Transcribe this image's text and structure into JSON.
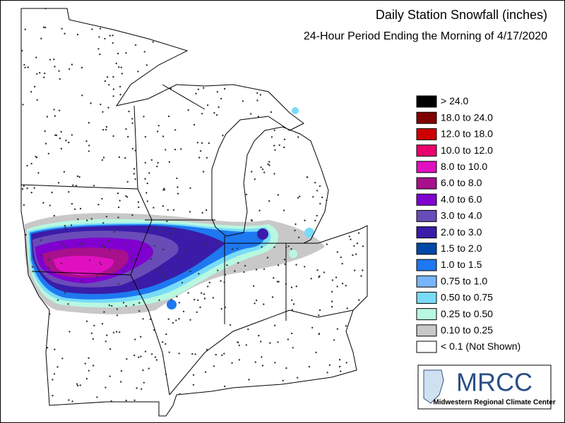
{
  "header": {
    "title": "Daily Station Snowfall (inches)",
    "subtitle": "24-Hour Period Ending the Morning of 4/17/2020"
  },
  "legend": {
    "items": [
      {
        "label": "> 24.0",
        "color": "#000000"
      },
      {
        "label": "18.0 to 24.0",
        "color": "#7f0000"
      },
      {
        "label": "12.0 to 18.0",
        "color": "#cc0000"
      },
      {
        "label": "10.0 to 12.0",
        "color": "#e8006e"
      },
      {
        "label": "8.0 to 10.0",
        "color": "#e010c0"
      },
      {
        "label": "6.0 to 8.0",
        "color": "#a8108c"
      },
      {
        "label": "4.0 to 6.0",
        "color": "#8000d0"
      },
      {
        "label": "3.0 to 4.0",
        "color": "#6a4cb8"
      },
      {
        "label": "2.0 to 3.0",
        "color": "#3a1ca8"
      },
      {
        "label": "1.5 to 2.0",
        "color": "#0048a8"
      },
      {
        "label": "1.0 to 1.5",
        "color": "#1e78f0"
      },
      {
        "label": "0.75 to 1.0",
        "color": "#78b4f8"
      },
      {
        "label": "0.50 to 0.75",
        "color": "#78dcf8"
      },
      {
        "label": "0.25 to 0.50",
        "color": "#b8f8e0"
      },
      {
        "label": "0.10 to 0.25",
        "color": "#c8c8c8"
      },
      {
        "label": "< 0.1 (Not Shown)",
        "color": "#ffffff"
      }
    ]
  },
  "logo": {
    "name": "MRCC",
    "subtitle": "Midwestern Regional Climate Center"
  }
}
